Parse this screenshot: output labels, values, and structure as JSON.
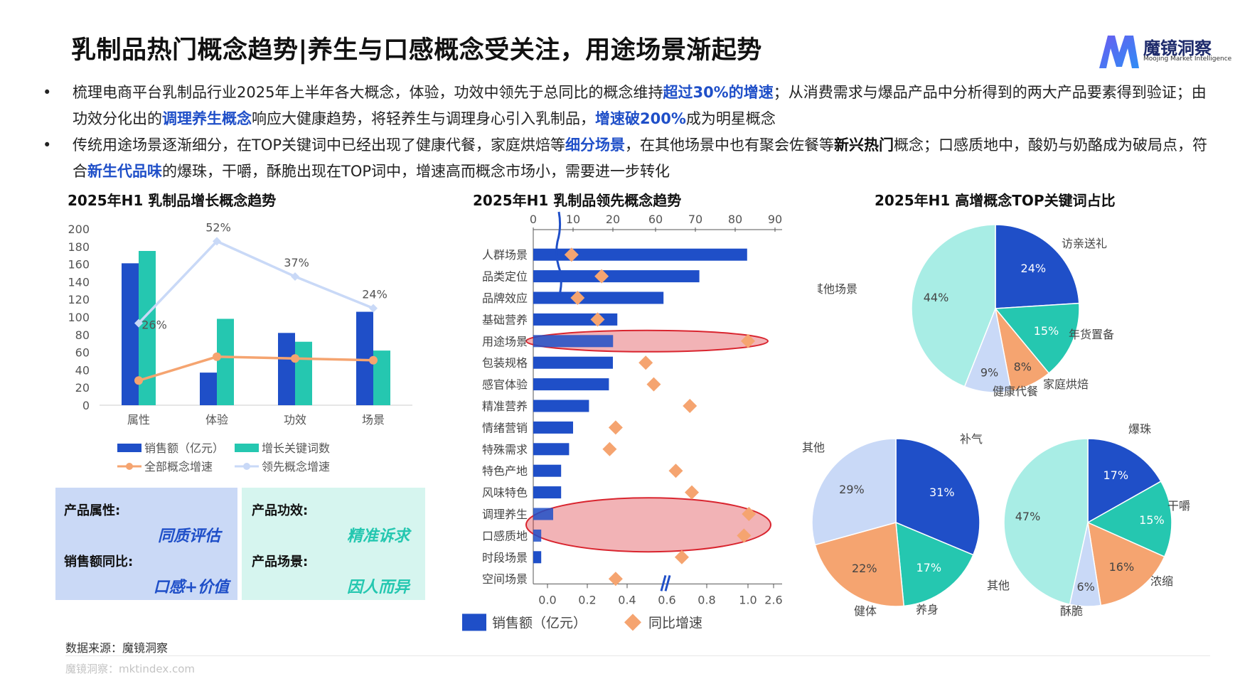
{
  "title": "乳制品热门概念趋势|养生与口感概念受关注，用途场景渐起势",
  "brand": {
    "name": "魔镜洞察",
    "sub": "Moojing Market Intelligence"
  },
  "bullets": [
    {
      "dot": "•",
      "seg": [
        "梳理电商平台乳制品行业2025年上半年各大概念，体验，功效中领先于总同比的概念维持",
        "超过30%的增速",
        "；从消费需求与爆品产品中分析得到的两大产品要素得到验证；由功效分化出的",
        "调理养生概念",
        "响应大健康趋势，将轻养生与调理身心引入乳制品，",
        "增速破200%",
        "成为明星概念"
      ]
    },
    {
      "dot": "•",
      "seg": [
        "传统用途场景逐渐细分，在TOP关键词中已经出现了健康代餐，家庭烘焙等",
        "细分场景",
        "，在其他场景中也有聚会佐餐等",
        "新兴热门",
        "概念；口感质地中，酸奶与奶酪成为破局点，符合",
        "新生代品味",
        "的爆珠，干嚼，酥脆出现在TOP词中，增速高而概念市场小，需要进一步转化"
      ]
    }
  ],
  "chart_titles": {
    "growth": "2025年H1 乳制品增长概念趋势",
    "leading": "2025年H1 乳制品领先概念趋势",
    "pies": "2025年H1 高增概念TOP关键词占比"
  },
  "chart_data": [
    {
      "type": "bar",
      "title": "2025年H1 乳制品增长概念趋势",
      "categories": [
        "属性",
        "体验",
        "功效",
        "场景"
      ],
      "ylim": [
        0,
        200
      ],
      "yticks": [
        0,
        20,
        40,
        60,
        80,
        100,
        120,
        140,
        160,
        180,
        200
      ],
      "series": [
        {
          "name": "销售额（亿元）",
          "kind": "bar",
          "values": [
            161,
            37,
            82,
            106
          ]
        },
        {
          "name": "增长关键词数",
          "kind": "bar",
          "values": [
            175,
            98,
            72,
            62
          ]
        },
        {
          "name": "全部概念增速",
          "kind": "line",
          "values": [
            28,
            55,
            53,
            51
          ]
        },
        {
          "name": "领先概念增速",
          "kind": "line",
          "values": [
            93,
            186,
            146,
            110
          ],
          "labels": [
            "26%",
            "52%",
            "37%",
            "24%"
          ]
        }
      ],
      "legend_position": "bottom"
    },
    {
      "type": "bar",
      "orientation": "horizontal",
      "title": "2025年H1 乳制品领先概念趋势",
      "categories": [
        "人群场景",
        "品类定位",
        "品牌效应",
        "基础营养",
        "用途场景",
        "包装规格",
        "感官体验",
        "精准营养",
        "情绪营销",
        "特殊需求",
        "特色产地",
        "风味特色",
        "调理养生",
        "口感质地",
        "时段场景",
        "空间场景"
      ],
      "top_axis_ticks": [
        "0",
        "10",
        "20",
        "60",
        "70",
        "80",
        "90"
      ],
      "bottom_axis_ticks": [
        "0.0",
        "0.2",
        "0.4",
        "0.6",
        "0.8",
        "1.0",
        "2.6"
      ],
      "series": [
        {
          "name": "销售额（亿元）",
          "values": [
            83,
            71,
            62,
            45,
            21,
            20,
            19,
            14,
            10,
            9,
            7,
            7,
            5,
            2,
            2,
            0
          ]
        },
        {
          "name": "同比增速",
          "values": [
            0.12,
            0.27,
            0.15,
            0.25,
            1.0,
            0.49,
            0.53,
            0.71,
            0.34,
            0.31,
            0.64,
            0.72,
            1.06,
            0.98,
            0.67,
            0.34
          ]
        }
      ],
      "highlights": [
        "用途场景",
        "调理养生",
        "口感质地"
      ],
      "legend_position": "bottom"
    },
    {
      "type": "pie",
      "labels": [
        "访亲送礼",
        "年货置备",
        "家庭烘焙",
        "健康代餐",
        "其他场景"
      ],
      "values": [
        24,
        15,
        8,
        9,
        44
      ],
      "pct_labels": [
        "24%",
        "15%",
        "8%",
        "9%",
        "44%"
      ],
      "colors": [
        "#1f4fc8",
        "#25c7b0",
        "#f5a470",
        "#c9d9f7",
        "#a8ede5"
      ]
    },
    {
      "type": "pie",
      "labels": [
        "补气",
        "养身",
        "健体",
        "其他"
      ],
      "values": [
        31,
        17,
        22,
        29
      ],
      "pct_labels": [
        "31%",
        "17%",
        "22%",
        "29%"
      ],
      "colors": [
        "#1f4fc8",
        "#25c7b0",
        "#f5a470",
        "#c9d9f7"
      ]
    },
    {
      "type": "pie",
      "labels": [
        "爆珠",
        "干嚼",
        "浓缩",
        "酥脆",
        "其他"
      ],
      "values": [
        17,
        15,
        16,
        6,
        47
      ],
      "pct_labels": [
        "17%",
        "15%",
        "16%",
        "6%",
        "47%"
      ],
      "colors": [
        "#1f4fc8",
        "#25c7b0",
        "#f5a470",
        "#c9d9f7",
        "#a8ede5"
      ]
    }
  ],
  "summary_boxes": [
    {
      "label1": "产品属性:",
      "value1": "同质评估",
      "label2": "销售额同比:",
      "value2": "口感+价值",
      "bg": "#cad9f6",
      "accent": "#1f4fc8"
    },
    {
      "label1": "产品功效:",
      "value1": "精准诉求",
      "label2": "产品场景:",
      "value2": "因人而异",
      "bg": "#d6f5ef",
      "accent": "#25c7b0"
    }
  ],
  "colors": {
    "blue": "#1f4fc8",
    "teal": "#25c7b0",
    "orange": "#f5a470",
    "lightblue": "#c9d9f7",
    "mint": "#a8ede5",
    "red_ellipse": "#d9252f"
  },
  "source": "数据来源：魔镜洞察",
  "footer": "魔镜洞察：mktindex.com"
}
